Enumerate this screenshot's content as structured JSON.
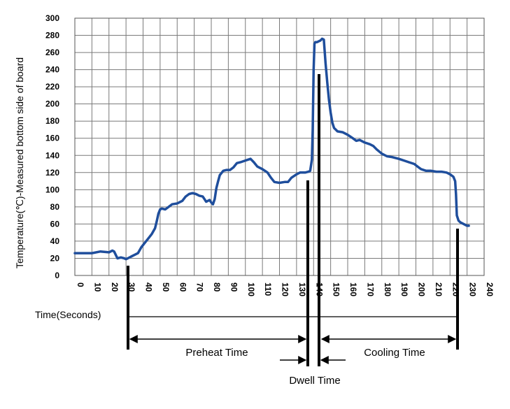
{
  "chart_data": {
    "type": "line",
    "title": "",
    "xlabel": "Time(Seconds)",
    "ylabel": "Temperature(℃)-Measured bottom side of board",
    "xlim": [
      0,
      240
    ],
    "ylim": [
      0,
      300
    ],
    "x_ticks": [
      0,
      10,
      20,
      30,
      40,
      50,
      60,
      70,
      80,
      90,
      100,
      110,
      120,
      130,
      140,
      150,
      160,
      170,
      180,
      190,
      200,
      210,
      220,
      230,
      240
    ],
    "y_ticks": [
      0,
      20,
      40,
      60,
      80,
      100,
      120,
      140,
      160,
      180,
      200,
      220,
      240,
      260,
      280,
      300
    ],
    "grid": true,
    "series": [
      {
        "color": "#1f4e9c",
        "points": [
          [
            0,
            26
          ],
          [
            5,
            26
          ],
          [
            10,
            26
          ],
          [
            15,
            28
          ],
          [
            20,
            27
          ],
          [
            22,
            29
          ],
          [
            23,
            28
          ],
          [
            25,
            20
          ],
          [
            27,
            21
          ],
          [
            29,
            20
          ],
          [
            30,
            19
          ],
          [
            31,
            20
          ],
          [
            33,
            22
          ],
          [
            35,
            24
          ],
          [
            37,
            26
          ],
          [
            39,
            33
          ],
          [
            41,
            38
          ],
          [
            43,
            43
          ],
          [
            45,
            48
          ],
          [
            47,
            55
          ],
          [
            48,
            63
          ],
          [
            49,
            72
          ],
          [
            50,
            77
          ],
          [
            51,
            78
          ],
          [
            53,
            77
          ],
          [
            55,
            80
          ],
          [
            57,
            83
          ],
          [
            60,
            84
          ],
          [
            63,
            87
          ],
          [
            65,
            92
          ],
          [
            67,
            95
          ],
          [
            69,
            96
          ],
          [
            71,
            95
          ],
          [
            73,
            93
          ],
          [
            75,
            92
          ],
          [
            76,
            89
          ],
          [
            77,
            86
          ],
          [
            78,
            87
          ],
          [
            79,
            88
          ],
          [
            80,
            85
          ],
          [
            81,
            83
          ],
          [
            82,
            89
          ],
          [
            83,
            102
          ],
          [
            84,
            110
          ],
          [
            85,
            117
          ],
          [
            87,
            122
          ],
          [
            89,
            123
          ],
          [
            91,
            123
          ],
          [
            93,
            126
          ],
          [
            95,
            131
          ],
          [
            97,
            132
          ],
          [
            100,
            134
          ],
          [
            103,
            136
          ],
          [
            105,
            132
          ],
          [
            107,
            127
          ],
          [
            110,
            124
          ],
          [
            113,
            120
          ],
          [
            115,
            114
          ],
          [
            117,
            109
          ],
          [
            120,
            108
          ],
          [
            123,
            109
          ],
          [
            125,
            109
          ],
          [
            127,
            114
          ],
          [
            130,
            118
          ],
          [
            132,
            120
          ],
          [
            135,
            120
          ],
          [
            137,
            121
          ],
          [
            138,
            122
          ],
          [
            139,
            135
          ],
          [
            139.5,
            170
          ],
          [
            140,
            240
          ],
          [
            140.5,
            270
          ],
          [
            141,
            272
          ],
          [
            142,
            272
          ],
          [
            143,
            273
          ],
          [
            144,
            274
          ],
          [
            145,
            276
          ],
          [
            146,
            275
          ],
          [
            147,
            248
          ],
          [
            148,
            225
          ],
          [
            149,
            205
          ],
          [
            150,
            190
          ],
          [
            151,
            178
          ],
          [
            152,
            172
          ],
          [
            154,
            168
          ],
          [
            157,
            167
          ],
          [
            160,
            164
          ],
          [
            163,
            160
          ],
          [
            165,
            157
          ],
          [
            167,
            158
          ],
          [
            170,
            155
          ],
          [
            173,
            153
          ],
          [
            175,
            151
          ],
          [
            177,
            147
          ],
          [
            180,
            142
          ],
          [
            183,
            139
          ],
          [
            186,
            138
          ],
          [
            190,
            136
          ],
          [
            193,
            134
          ],
          [
            196,
            132
          ],
          [
            199,
            130
          ],
          [
            201,
            127
          ],
          [
            203,
            124
          ],
          [
            206,
            122
          ],
          [
            209,
            122
          ],
          [
            212,
            121
          ],
          [
            215,
            121
          ],
          [
            218,
            120
          ],
          [
            220,
            118
          ],
          [
            222,
            115
          ],
          [
            223,
            110
          ],
          [
            223.5,
            95
          ],
          [
            224,
            70
          ],
          [
            225,
            64
          ],
          [
            226,
            62
          ],
          [
            228,
            60
          ],
          [
            230,
            58
          ],
          [
            231,
            58
          ]
        ]
      }
    ],
    "annotations": {
      "time_label": "Time(Seconds)",
      "preheat": "Preheat Time",
      "dwell": "Dwell Time",
      "cooling": "Cooling Time"
    }
  }
}
